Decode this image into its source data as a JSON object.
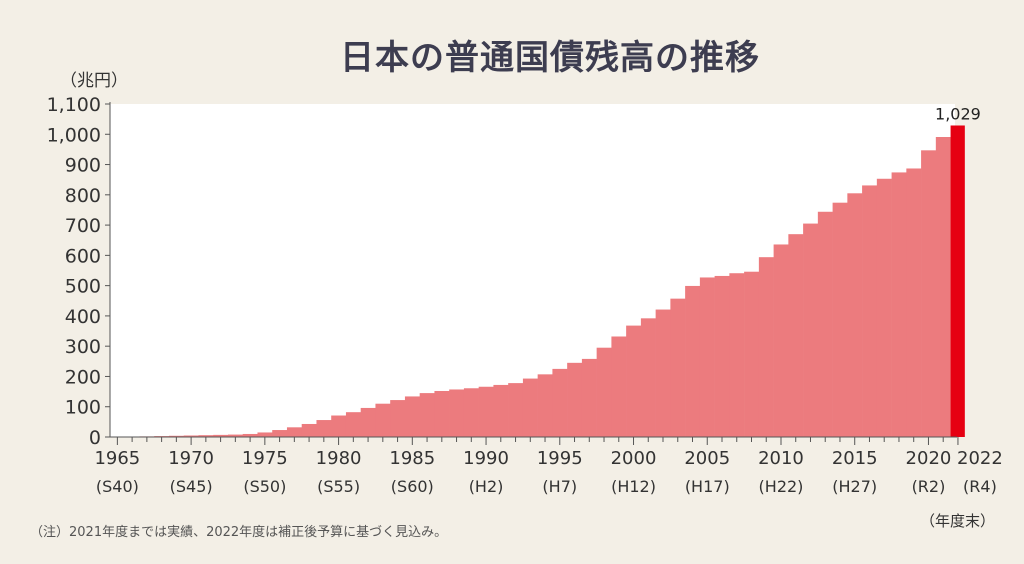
{
  "chart_data": {
    "type": "bar",
    "title": "日本の普通国債残高の推移",
    "ylabel": "（兆円）",
    "ylim": [
      0,
      1100
    ],
    "yticks": [
      0,
      100,
      200,
      300,
      400,
      500,
      600,
      700,
      800,
      900,
      1000,
      1100
    ],
    "ytick_labels": [
      "0",
      "100",
      "200",
      "300",
      "400",
      "500",
      "600",
      "700",
      "800",
      "900",
      "1,000",
      "1,100"
    ],
    "x_unit_label": "（年度末）",
    "xticks": [
      {
        "year": 1965,
        "label": "1965",
        "era": "(S40)"
      },
      {
        "year": 1970,
        "label": "1970",
        "era": "(S45)"
      },
      {
        "year": 1975,
        "label": "1975",
        "era": "(S50)"
      },
      {
        "year": 1980,
        "label": "1980",
        "era": "(S55)"
      },
      {
        "year": 1985,
        "label": "1985",
        "era": "(S60)"
      },
      {
        "year": 1990,
        "label": "1990",
        "era": "(H2)"
      },
      {
        "year": 1995,
        "label": "1995",
        "era": "(H7)"
      },
      {
        "year": 2000,
        "label": "2000",
        "era": "(H12)"
      },
      {
        "year": 2005,
        "label": "2005",
        "era": "(H17)"
      },
      {
        "year": 2010,
        "label": "2010",
        "era": "(H22)"
      },
      {
        "year": 2015,
        "label": "2015",
        "era": "(H27)"
      },
      {
        "year": 2020,
        "label": "2020",
        "era": "(R2)"
      },
      {
        "year": 2022,
        "label": "2022",
        "era": "(R4)"
      }
    ],
    "years": [
      1965,
      1966,
      1967,
      1968,
      1969,
      1970,
      1971,
      1972,
      1973,
      1974,
      1975,
      1976,
      1977,
      1978,
      1979,
      1980,
      1981,
      1982,
      1983,
      1984,
      1985,
      1986,
      1987,
      1988,
      1989,
      1990,
      1991,
      1992,
      1993,
      1994,
      1995,
      1996,
      1997,
      1998,
      1999,
      2000,
      2001,
      2002,
      2003,
      2004,
      2005,
      2006,
      2007,
      2008,
      2009,
      2010,
      2011,
      2012,
      2013,
      2014,
      2015,
      2016,
      2017,
      2018,
      2019,
      2020,
      2021,
      2022
    ],
    "values": [
      0.2,
      1,
      2,
      3,
      4,
      5,
      6,
      7,
      8,
      10,
      15,
      23,
      32,
      43,
      56,
      71,
      82,
      96,
      110,
      122,
      134,
      145,
      152,
      157,
      161,
      166,
      172,
      178,
      193,
      207,
      225,
      245,
      258,
      295,
      332,
      368,
      392,
      421,
      457,
      499,
      527,
      532,
      541,
      546,
      594,
      636,
      670,
      705,
      744,
      774,
      805,
      831,
      853,
      874,
      887,
      947,
      991,
      1029
    ],
    "bar_color": "#ec7b7e",
    "highlight_color": "#e60012",
    "highlight_label": "1,029"
  },
  "footnote": "（注）2021年度までは実績、2022年度は補正後予算に基づく見込み。"
}
